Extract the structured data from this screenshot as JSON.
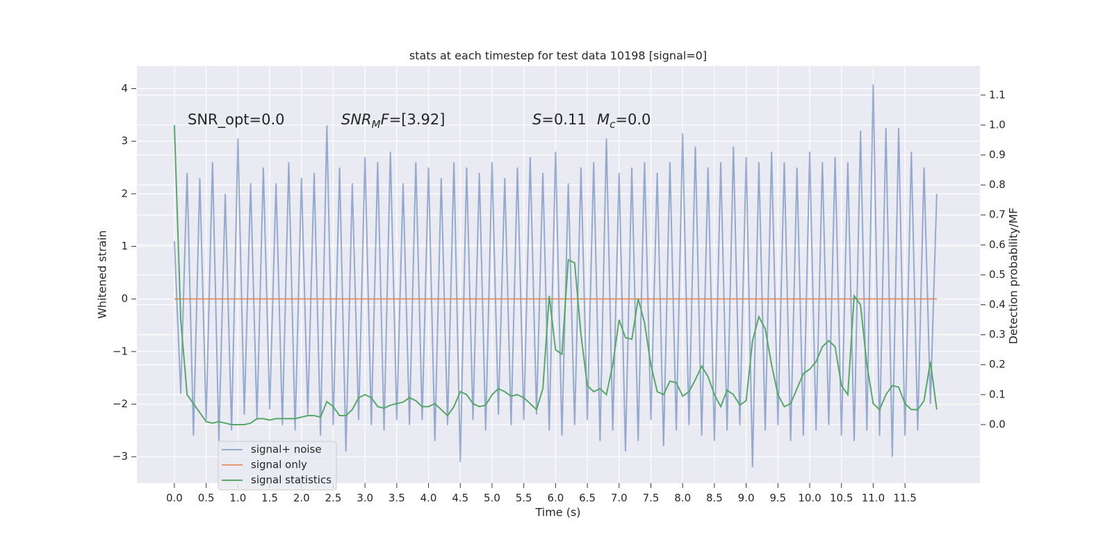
{
  "chart_data": {
    "type": "line",
    "title": "stats at each timestep for test data 10198 [signal=0]",
    "xlabel": "Time (s)",
    "ylabel": "Whitened strain",
    "y2label": "Detection probability/MF",
    "grid": true,
    "legend": "lower left",
    "x": [
      0.0,
      0.1,
      0.2,
      0.3,
      0.4,
      0.5,
      0.6,
      0.7,
      0.8,
      0.9,
      1.0,
      1.1,
      1.2,
      1.3,
      1.4,
      1.5,
      1.6,
      1.7,
      1.8,
      1.9,
      2.0,
      2.1,
      2.2,
      2.3,
      2.4,
      2.5,
      2.6,
      2.7,
      2.8,
      2.9,
      3.0,
      3.1,
      3.2,
      3.3,
      3.4,
      3.5,
      3.6,
      3.7,
      3.8,
      3.9,
      4.0,
      4.1,
      4.2,
      4.3,
      4.4,
      4.5,
      4.6,
      4.7,
      4.8,
      4.9,
      5.0,
      5.1,
      5.2,
      5.3,
      5.4,
      5.5,
      5.6,
      5.7,
      5.8,
      5.9,
      6.0,
      6.1,
      6.2,
      6.3,
      6.4,
      6.5,
      6.6,
      6.7,
      6.8,
      6.9,
      7.0,
      7.1,
      7.2,
      7.3,
      7.4,
      7.5,
      7.6,
      7.7,
      7.8,
      7.9,
      8.0,
      8.1,
      8.2,
      8.3,
      8.4,
      8.5,
      8.6,
      8.7,
      8.8,
      8.9,
      9.0,
      9.1,
      9.2,
      9.3,
      9.4,
      9.5,
      9.6,
      9.7,
      9.8,
      9.9,
      10.0,
      10.1,
      10.2,
      10.3,
      10.4,
      10.5,
      10.6,
      10.7,
      10.8,
      10.9,
      11.0,
      11.1,
      11.2,
      11.3,
      11.4,
      11.5,
      11.6,
      11.7,
      11.8,
      11.9,
      12.0
    ],
    "series": [
      {
        "name": "signal+ noise",
        "color": "#4c72b0",
        "opacity": 0.55,
        "values": [
          1.1,
          -1.8,
          2.4,
          -2.6,
          2.3,
          -2.3,
          2.6,
          -2.7,
          2.0,
          -2.5,
          3.05,
          -2.2,
          2.2,
          -2.3,
          2.5,
          -2.1,
          2.2,
          -2.4,
          2.6,
          -2.5,
          2.3,
          -2.2,
          2.4,
          -2.6,
          3.3,
          -2.4,
          2.5,
          -2.9,
          2.2,
          -2.3,
          2.7,
          -2.4,
          2.6,
          -2.5,
          2.8,
          -2.3,
          2.2,
          -2.4,
          2.6,
          -2.3,
          2.5,
          -2.7,
          2.3,
          -2.4,
          2.6,
          -3.1,
          2.5,
          -2.3,
          2.4,
          -2.5,
          2.6,
          -2.2,
          2.3,
          -2.4,
          2.5,
          -2.3,
          2.7,
          -2.2,
          2.4,
          -2.5,
          2.8,
          -2.6,
          2.2,
          -2.4,
          2.5,
          -2.3,
          2.6,
          -2.7,
          3.05,
          -2.5,
          2.4,
          -2.9,
          2.5,
          -2.7,
          2.6,
          -2.3,
          2.4,
          -2.8,
          2.6,
          -2.5,
          3.15,
          -2.4,
          2.9,
          -2.6,
          2.5,
          -2.7,
          2.6,
          -2.5,
          2.9,
          -2.4,
          2.7,
          -3.2,
          2.6,
          -2.5,
          2.8,
          -2.4,
          2.6,
          -2.7,
          2.5,
          -2.6,
          2.8,
          -2.5,
          2.6,
          -2.4,
          2.7,
          -2.6,
          2.6,
          -2.7,
          3.2,
          -2.5,
          4.08,
          -2.6,
          3.25,
          -3.0,
          3.25,
          -2.6,
          2.8,
          -2.5,
          2.5,
          -2.0,
          2.0
        ]
      },
      {
        "name": "signal only",
        "color": "#dd8452",
        "opacity": 0.8,
        "x": [
          0.0,
          12.0
        ],
        "values": [
          0,
          0
        ]
      },
      {
        "name": "signal statistics",
        "color": "#55a868",
        "opacity": 1,
        "axis": "y2",
        "values": [
          1.0,
          0.35,
          0.1,
          0.07,
          0.04,
          0.01,
          0.005,
          0.01,
          0.005,
          0.0,
          0.0,
          0.0,
          0.005,
          0.02,
          0.02,
          0.015,
          0.02,
          0.02,
          0.02,
          0.02,
          0.025,
          0.03,
          0.03,
          0.025,
          0.077,
          0.06,
          0.03,
          0.03,
          0.05,
          0.09,
          0.1,
          0.09,
          0.06,
          0.055,
          0.065,
          0.07,
          0.075,
          0.09,
          0.08,
          0.06,
          0.06,
          0.07,
          0.05,
          0.03,
          0.06,
          0.11,
          0.1,
          0.07,
          0.06,
          0.065,
          0.1,
          0.12,
          0.11,
          0.095,
          0.1,
          0.09,
          0.07,
          0.05,
          0.12,
          0.43,
          0.25,
          0.235,
          0.55,
          0.54,
          0.3,
          0.13,
          0.11,
          0.12,
          0.1,
          0.2,
          0.35,
          0.29,
          0.285,
          0.42,
          0.34,
          0.2,
          0.11,
          0.1,
          0.145,
          0.14,
          0.095,
          0.11,
          0.15,
          0.195,
          0.16,
          0.1,
          0.06,
          0.115,
          0.1,
          0.065,
          0.08,
          0.28,
          0.36,
          0.32,
          0.2,
          0.1,
          0.06,
          0.07,
          0.12,
          0.17,
          0.185,
          0.21,
          0.26,
          0.28,
          0.26,
          0.13,
          0.1,
          0.43,
          0.4,
          0.2,
          0.07,
          0.05,
          0.1,
          0.13,
          0.125,
          0.07,
          0.05,
          0.05,
          0.08,
          0.21,
          0.05
        ]
      }
    ],
    "annotations": [
      {
        "parts": [
          {
            "text": "SNR_opt=0.0"
          }
        ]
      },
      {
        "parts": [
          {
            "text": "SNR",
            "italic": true
          },
          {
            "text": "M",
            "italic": true,
            "sub": true
          },
          {
            "text": "F",
            "italic": true
          },
          {
            "text": "=[3.92]"
          }
        ]
      },
      {
        "parts": [
          {
            "text": "S",
            "italic": true
          },
          {
            "text": "=0.11"
          }
        ]
      },
      {
        "parts": [
          {
            "text": "M",
            "italic": true
          },
          {
            "text": "c",
            "italic": true,
            "sub": true
          },
          {
            "text": "=0.0"
          }
        ]
      }
    ],
    "xlim": [
      -0.59,
      12.68
    ],
    "ylim": [
      -3.5,
      4.43
    ],
    "y2lim": [
      -0.195,
      1.197
    ],
    "xticks": [
      {
        "value": 0,
        "label": "0.0"
      },
      {
        "value": 0.5,
        "label": "0.5"
      },
      {
        "value": 1,
        "label": "1.0"
      },
      {
        "value": 1.5,
        "label": "1.5"
      },
      {
        "value": 2,
        "label": "2.0"
      },
      {
        "value": 2.5,
        "label": "2.5"
      },
      {
        "value": 3,
        "label": "3.0"
      },
      {
        "value": 3.5,
        "label": "3.5"
      },
      {
        "value": 4,
        "label": "4.0"
      },
      {
        "value": 4.5,
        "label": "4.5"
      },
      {
        "value": 5,
        "label": "5.0"
      },
      {
        "value": 5.5,
        "label": "5.5"
      },
      {
        "value": 6,
        "label": "6.0"
      },
      {
        "value": 6.5,
        "label": "6.5"
      },
      {
        "value": 7,
        "label": "7.0"
      },
      {
        "value": 7.5,
        "label": "7.5"
      },
      {
        "value": 8,
        "label": "8.0"
      },
      {
        "value": 8.5,
        "label": "8.5"
      },
      {
        "value": 9,
        "label": "9.0"
      },
      {
        "value": 9.5,
        "label": "9.5"
      },
      {
        "value": 10,
        "label": "10.0"
      },
      {
        "value": 10.5,
        "label": "10.5"
      },
      {
        "value": 11,
        "label": "11.0"
      },
      {
        "value": 11.5,
        "label": "11.5"
      }
    ],
    "yticks": [
      {
        "value": -3,
        "label": "−3"
      },
      {
        "value": -2,
        "label": "−2"
      },
      {
        "value": -1,
        "label": "−1"
      },
      0,
      1,
      2,
      3,
      4
    ],
    "y2ticks": [
      {
        "value": 0,
        "label": "0.0"
      },
      {
        "value": 0.1,
        "label": "0.1"
      },
      {
        "value": 0.2,
        "label": "0.2"
      },
      {
        "value": 0.3,
        "label": "0.3"
      },
      {
        "value": 0.4,
        "label": "0.4"
      },
      {
        "value": 0.5,
        "label": "0.5"
      },
      {
        "value": 0.6,
        "label": "0.6"
      },
      {
        "value": 0.7,
        "label": "0.7"
      },
      {
        "value": 0.8,
        "label": "0.8"
      },
      {
        "value": 0.9,
        "label": "0.9"
      },
      {
        "value": 1,
        "label": "1.0"
      },
      {
        "value": 1.1,
        "label": "1.1"
      }
    ]
  }
}
